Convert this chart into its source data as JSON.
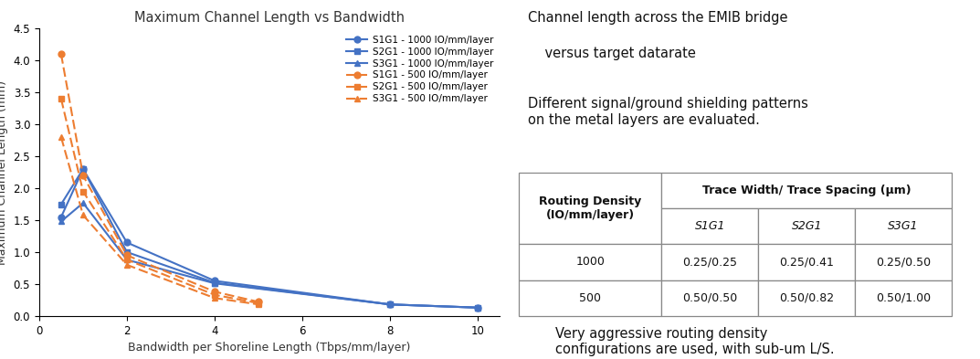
{
  "title": "Maximum Channel Length vs Bandwidth",
  "xlabel": "Bandwidth per Shoreline Length (Tbps/mm/layer)",
  "ylabel": "Maximum Channel Length (mm)",
  "xlim": [
    0,
    10.5
  ],
  "ylim": [
    0,
    4.5
  ],
  "xticks": [
    0,
    2,
    4,
    6,
    8,
    10
  ],
  "yticks": [
    0,
    0.5,
    1.0,
    1.5,
    2.0,
    2.5,
    3.0,
    3.5,
    4.0,
    4.5
  ],
  "series": [
    {
      "label": "S1G1 - 1000 IO/mm/layer",
      "x": [
        0.5,
        1,
        2,
        4,
        8,
        10
      ],
      "y": [
        1.55,
        2.3,
        1.15,
        0.55,
        0.18,
        0.13
      ],
      "color": "#4472C4",
      "linestyle": "-",
      "marker": "o",
      "dashes": []
    },
    {
      "label": "S2G1 - 1000 IO/mm/layer",
      "x": [
        0.5,
        1,
        2,
        4,
        8,
        10
      ],
      "y": [
        1.75,
        2.3,
        1.0,
        0.52,
        0.18,
        0.13
      ],
      "color": "#4472C4",
      "linestyle": "-",
      "marker": "s",
      "dashes": []
    },
    {
      "label": "S3G1 - 1000 IO/mm/layer",
      "x": [
        0.5,
        1,
        2,
        4,
        8,
        10
      ],
      "y": [
        1.48,
        1.77,
        0.88,
        0.51,
        0.18,
        0.13
      ],
      "color": "#4472C4",
      "linestyle": "-",
      "marker": "^",
      "dashes": []
    },
    {
      "label": "S1G1 - 500 IO/mm/layer",
      "x": [
        0.5,
        1,
        2,
        4,
        5
      ],
      "y": [
        4.1,
        2.2,
        0.95,
        0.38,
        0.22
      ],
      "color": "#ED7D31",
      "linestyle": "--",
      "marker": "o",
      "dashes": [
        5,
        2
      ]
    },
    {
      "label": "S2G1 - 500 IO/mm/layer",
      "x": [
        0.5,
        1,
        2,
        4,
        5
      ],
      "y": [
        3.4,
        1.95,
        0.88,
        0.33,
        0.2
      ],
      "color": "#ED7D31",
      "linestyle": "--",
      "marker": "s",
      "dashes": [
        5,
        2
      ]
    },
    {
      "label": "S3G1 - 500 IO/mm/layer",
      "x": [
        0.5,
        1,
        2,
        4,
        5
      ],
      "y": [
        2.8,
        1.58,
        0.8,
        0.28,
        0.18
      ],
      "color": "#ED7D31",
      "linestyle": "--",
      "marker": "^",
      "dashes": [
        5,
        2
      ]
    }
  ],
  "right_text1_line1": "Channel length across the EMIB bridge",
  "right_text1_line2": "    versus target datarate",
  "right_text2": "Different signal/ground shielding patterns\non the metal layers are evaluated.",
  "right_text3": "Very aggressive routing density\nconfigurations are used, with sub-um L/S.",
  "table_col_header": "Routing Density\n(IO/mm/layer)",
  "table_span_header": "Trace Width/ Trace Spacing (μm)",
  "table_sub_headers": [
    "S1G1",
    "S2G1",
    "S3G1"
  ],
  "table_row1": [
    "1000",
    "0.25/0.25",
    "0.25/0.41",
    "0.25/0.50"
  ],
  "table_row2": [
    "500",
    "0.50/0.50",
    "0.50/0.82",
    "0.50/1.00"
  ],
  "background_color": "#FFFFFF",
  "border_color": "#888888"
}
